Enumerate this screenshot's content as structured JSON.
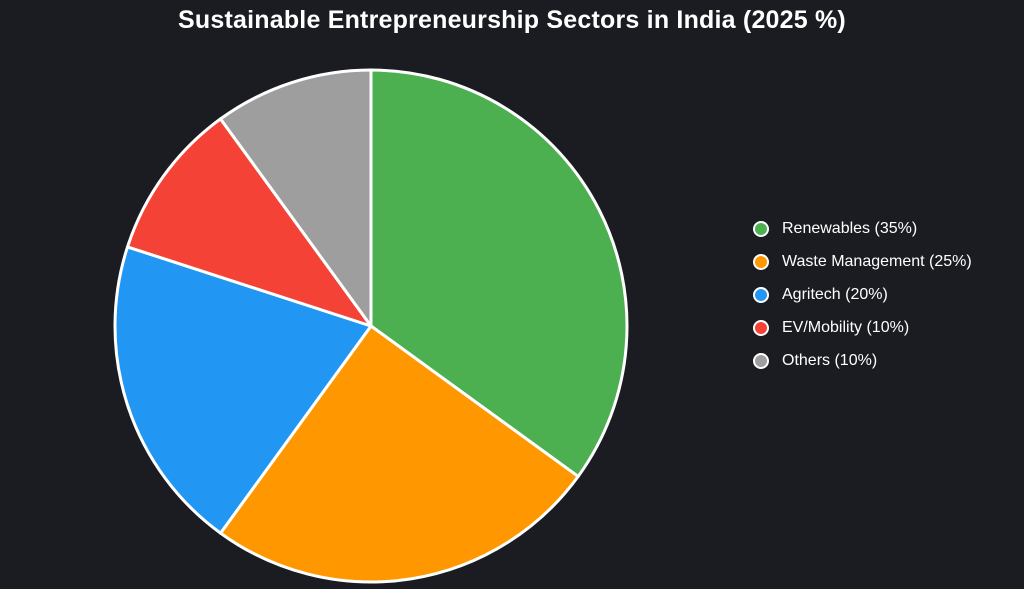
{
  "title": "Sustainable Entrepreneurship Sectors in India (2025 %)",
  "colors": {
    "background": "#1a1c21",
    "title_text": "#ffffff",
    "legend_text": "#ffffff",
    "slice_border": "#ffffff"
  },
  "chart_data": {
    "type": "pie",
    "title": "Sustainable Entrepreneurship Sectors in India (2025 %)",
    "categories": [
      "Renewables",
      "Waste Management",
      "Agritech",
      "EV/Mobility",
      "Others"
    ],
    "values": [
      35,
      25,
      20,
      10,
      10
    ],
    "units": "%",
    "slice_colors": [
      "#4caf50",
      "#ff9800",
      "#2196f3",
      "#f44336",
      "#9e9e9e"
    ],
    "legend_labels": [
      "Renewables (35%)",
      "Waste Management (25%)",
      "Agritech (20%)",
      "EV/Mobility (10%)",
      "Others (10%)"
    ],
    "legend_position": "right",
    "start_angle_deg": 0,
    "direction": "clockwise"
  }
}
